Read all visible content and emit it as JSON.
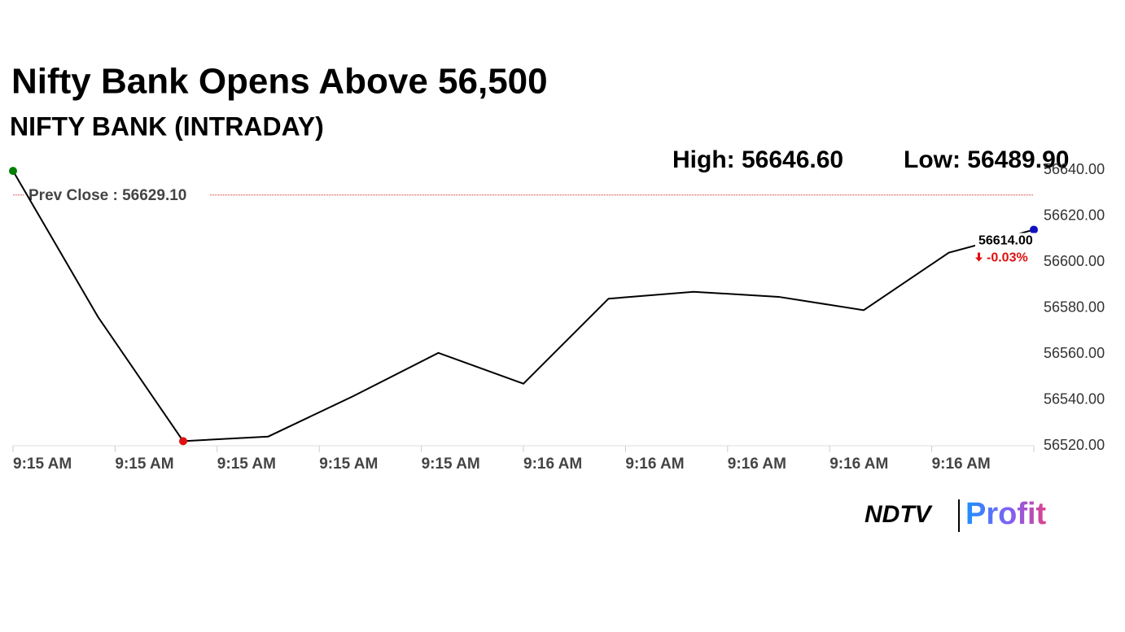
{
  "chart_data": {
    "type": "line",
    "title": "Nifty Bank Opens Above 56,500",
    "subtitle": "NIFTY BANK (INTRADAY)",
    "high_label": "High: 56646.60",
    "low_label": "Low: 56489.90",
    "prev_close": 56629.1,
    "prev_close_label": "Prev Close : 56629.10",
    "last_value_label": "56614.00",
    "change_label": "-0.03%",
    "xtick_labels": [
      "9:15 AM",
      "9:15 AM",
      "9:15 AM",
      "9:15 AM",
      "9:15 AM",
      "9:16 AM",
      "9:16 AM",
      "9:16 AM",
      "9:16 AM",
      "9:16 AM"
    ],
    "values": [
      56639.6,
      56576,
      56522,
      56524,
      56541.6,
      56560.4,
      56547,
      56584,
      56587,
      56584.8,
      56579,
      56604,
      56614
    ],
    "color": "#000000",
    "start_color": "#008000",
    "low_color": "#e01010",
    "end_color": "#1010c0",
    "prev_close_color": "#d02020",
    "change_color": "#e01010",
    "ylim": [
      56520,
      56640
    ],
    "yticks": [
      {
        "value": 56520,
        "label": "56520.00"
      },
      {
        "value": 56540,
        "label": "56540.00"
      },
      {
        "value": 56560,
        "label": "56560.00"
      },
      {
        "value": 56580,
        "label": "56580.00"
      },
      {
        "value": 56600,
        "label": "56600.00"
      },
      {
        "value": 56620,
        "label": "56620.00"
      },
      {
        "value": 56640,
        "label": "56640.00"
      }
    ],
    "logo": [
      "NDTV",
      "Profit"
    ]
  }
}
